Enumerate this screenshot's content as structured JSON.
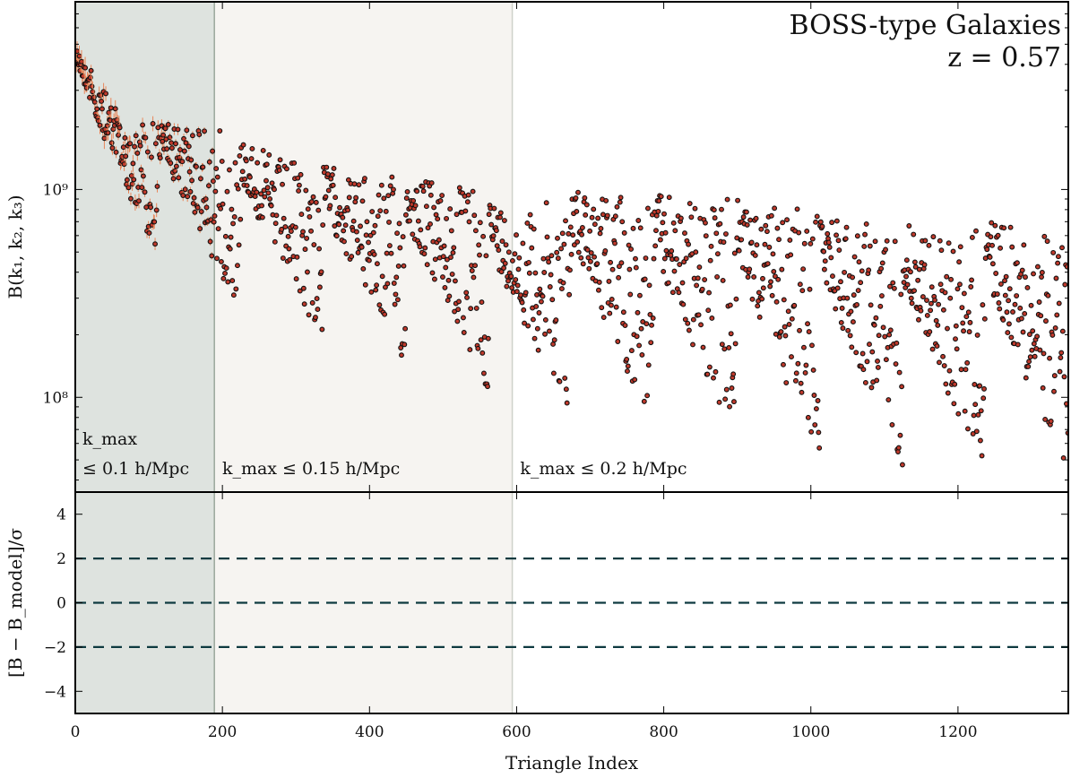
{
  "chart_data": {
    "type": "scatter",
    "annotations": [
      "BOSS-type Galaxies",
      "z = 0.57"
    ],
    "xlabel": "Triangle Index",
    "xlim": [
      0,
      1350
    ],
    "xticks": [
      0,
      200,
      400,
      600,
      800,
      1000,
      1200
    ],
    "top_panel": {
      "ylabel": "B(k₁, k₂, k₃)",
      "yscale": "log",
      "ylim": [
        35000000,
        8000000000
      ],
      "ytick_labels": [
        "10⁸",
        "10⁹"
      ],
      "ytick_values": [
        100000000,
        1000000000
      ],
      "series_name": "",
      "n_points": 1350,
      "envelope_x": [
        0,
        40,
        100,
        190,
        290,
        400,
        520,
        600,
        700,
        800,
        900,
        1000,
        1100,
        1200,
        1250,
        1300,
        1350
      ],
      "envelope_max": [
        5000000000,
        3000000000,
        2100000000,
        2050000000,
        1400000000,
        1200000000,
        1150000000,
        750000000,
        1100000000,
        950000000,
        900000000,
        800000000,
        730000000,
        650000000,
        720000000,
        650000000,
        580000000
      ],
      "envelope_min": [
        2500000000,
        1000000000,
        550000000,
        300000000,
        200000000,
        160000000,
        110000000,
        100000000,
        75000000,
        65000000,
        58000000,
        50000000,
        48000000,
        42000000,
        50000000,
        44000000,
        43000000
      ],
      "n_sawtooth_groups": 12,
      "marker_fill": "#c0392b",
      "marker_edge": "#111111",
      "errorbar_color": "#e8865a"
    },
    "bottom_panel": {
      "ylabel": "[B − B_model]/σ",
      "ylim": [
        -5,
        5
      ],
      "yticks": [
        -4,
        -2,
        0,
        2,
        4
      ],
      "reference_lines": [
        -2,
        0,
        2
      ],
      "line_style": "dashed",
      "line_color": "#0e3a40"
    },
    "regions": [
      {
        "label_line1": "k_max",
        "label_line2": "≤ 0.1 h/Mpc",
        "x_range": [
          0,
          190
        ],
        "fill": "#dee3df",
        "edge": "#9ba89c"
      },
      {
        "label_line1": "",
        "label_line2": "k_max ≤ 0.15 h/Mpc",
        "x_range": [
          190,
          595
        ],
        "fill": "#f6f4f1",
        "edge": "#cfd1ca"
      },
      {
        "label_line1": "",
        "label_line2": "k_max ≤ 0.2 h/Mpc",
        "x_range": [
          595,
          1350
        ],
        "fill": "#ffffff",
        "edge": ""
      }
    ]
  }
}
